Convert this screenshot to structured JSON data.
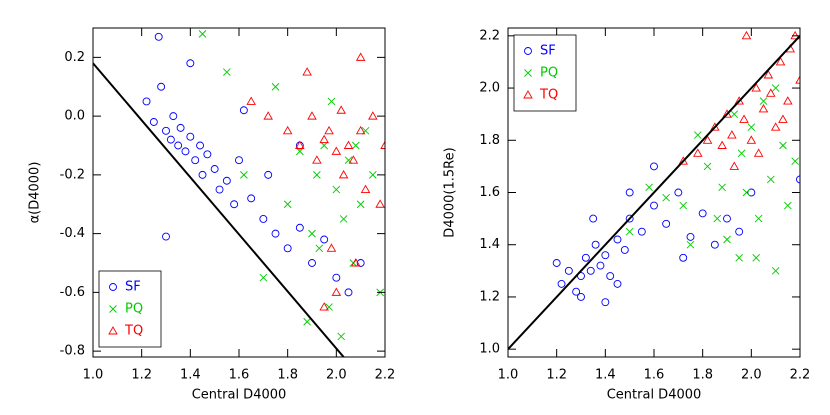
{
  "chart_data": [
    {
      "type": "scatter",
      "xlabel": "Central D4000",
      "ylabel": "α(D4000)",
      "xlim": [
        1.0,
        2.2
      ],
      "ylim": [
        -0.82,
        0.3
      ],
      "xticks": [
        {
          "value": 1.0,
          "label": "1.0"
        },
        1.2,
        1.4,
        1.6,
        1.8,
        {
          "value": 2.0,
          "label": "2.0"
        },
        2.2
      ],
      "yticks": [
        -0.8,
        -0.6,
        -0.4,
        -0.2,
        {
          "value": 0.0,
          "label": "0.0"
        },
        0.2
      ],
      "legend": "lower left",
      "line": {
        "color": "#000000",
        "x": [
          1.0,
          2.03
        ],
        "y": [
          0.18,
          -0.82
        ]
      },
      "series": [
        {
          "name": "SF",
          "color": "#0000ff",
          "marker": "circle",
          "x": [
            1.22,
            1.25,
            1.28,
            1.3,
            1.32,
            1.33,
            1.35,
            1.36,
            1.38,
            1.4,
            1.42,
            1.44,
            1.45,
            1.47,
            1.5,
            1.52,
            1.55,
            1.58,
            1.6,
            1.65,
            1.7,
            1.75,
            1.8,
            1.85,
            1.9,
            1.95,
            2.0,
            2.05,
            1.3,
            1.27,
            1.4,
            1.62,
            1.72,
            1.85,
            2.1
          ],
          "y": [
            0.05,
            -0.02,
            0.1,
            -0.05,
            -0.08,
            0.0,
            -0.1,
            -0.04,
            -0.12,
            -0.07,
            -0.15,
            -0.1,
            -0.2,
            -0.13,
            -0.18,
            -0.25,
            -0.22,
            -0.3,
            -0.15,
            -0.28,
            -0.35,
            -0.4,
            -0.45,
            -0.38,
            -0.5,
            -0.42,
            -0.55,
            -0.6,
            -0.41,
            0.27,
            0.18,
            0.02,
            -0.2,
            -0.1,
            -0.5
          ]
        },
        {
          "name": "PQ",
          "color": "#00cc00",
          "marker": "x",
          "x": [
            1.45,
            1.55,
            1.62,
            1.7,
            1.75,
            1.8,
            1.85,
            1.9,
            1.92,
            1.95,
            1.97,
            2.0,
            2.02,
            2.05,
            2.07,
            2.1,
            2.12,
            2.15,
            2.18,
            1.98,
            2.03,
            1.88,
            2.08,
            1.93
          ],
          "y": [
            0.28,
            0.15,
            -0.2,
            -0.55,
            0.1,
            -0.3,
            -0.12,
            -0.4,
            -0.2,
            -0.1,
            -0.65,
            -0.25,
            -0.75,
            -0.15,
            -0.5,
            -0.3,
            -0.05,
            -0.2,
            -0.6,
            0.05,
            -0.35,
            -0.7,
            -0.1,
            -0.45
          ]
        },
        {
          "name": "TQ",
          "color": "#ff0000",
          "marker": "triangle",
          "x": [
            1.65,
            1.72,
            1.8,
            1.85,
            1.9,
            1.92,
            1.95,
            1.97,
            2.0,
            2.02,
            2.03,
            2.05,
            2.07,
            2.1,
            2.12,
            2.15,
            2.18,
            2.2,
            1.88,
            1.98,
            2.08,
            2.0,
            1.95,
            2.1
          ],
          "y": [
            0.05,
            0.0,
            -0.05,
            -0.1,
            0.0,
            -0.15,
            -0.08,
            -0.05,
            -0.12,
            0.02,
            -0.2,
            -0.1,
            -0.15,
            -0.05,
            -0.25,
            0.0,
            -0.3,
            -0.1,
            0.15,
            -0.45,
            -0.5,
            -0.6,
            -0.65,
            0.2
          ]
        }
      ]
    },
    {
      "type": "scatter",
      "xlabel": "Central D4000",
      "ylabel": "D4000(1.5Re)",
      "xlim": [
        1.0,
        2.2
      ],
      "ylim": [
        0.97,
        2.23
      ],
      "xticks": [
        {
          "value": 1.0,
          "label": "1.0"
        },
        1.2,
        1.4,
        1.6,
        1.8,
        {
          "value": 2.0,
          "label": "2.0"
        },
        2.2
      ],
      "yticks": [
        {
          "value": 1.0,
          "label": "1.0"
        },
        1.2,
        1.4,
        1.6,
        1.8,
        {
          "value": 2.0,
          "label": "2.0"
        },
        2.2
      ],
      "legend": "upper left",
      "line": {
        "color": "#000000",
        "x": [
          1.0,
          2.2
        ],
        "y": [
          1.0,
          2.2
        ]
      },
      "series": [
        {
          "name": "SF",
          "color": "#0000ff",
          "marker": "circle",
          "x": [
            1.2,
            1.22,
            1.25,
            1.28,
            1.3,
            1.32,
            1.34,
            1.36,
            1.38,
            1.4,
            1.42,
            1.45,
            1.48,
            1.5,
            1.55,
            1.6,
            1.65,
            1.7,
            1.75,
            1.8,
            1.85,
            1.9,
            1.95,
            2.0,
            1.3,
            1.4,
            1.5,
            1.6,
            1.35,
            2.2,
            1.45,
            1.72
          ],
          "y": [
            1.33,
            1.25,
            1.3,
            1.22,
            1.28,
            1.35,
            1.3,
            1.4,
            1.32,
            1.36,
            1.28,
            1.42,
            1.38,
            1.5,
            1.45,
            1.55,
            1.48,
            1.6,
            1.43,
            1.52,
            1.4,
            1.5,
            1.45,
            1.6,
            1.2,
            1.18,
            1.6,
            1.7,
            1.5,
            1.65,
            1.25,
            1.35
          ]
        },
        {
          "name": "PQ",
          "color": "#00cc00",
          "marker": "x",
          "x": [
            1.5,
            1.58,
            1.65,
            1.72,
            1.78,
            1.82,
            1.86,
            1.9,
            1.93,
            1.96,
            1.98,
            2.0,
            2.03,
            2.05,
            2.08,
            2.1,
            2.13,
            2.15,
            2.18,
            1.95,
            2.02,
            1.88,
            1.75,
            2.1
          ],
          "y": [
            1.45,
            1.62,
            1.58,
            1.55,
            1.82,
            1.7,
            1.5,
            1.42,
            1.9,
            1.75,
            1.6,
            1.85,
            1.5,
            1.95,
            1.65,
            2.0,
            1.78,
            1.55,
            1.72,
            1.35,
            1.35,
            1.62,
            1.4,
            1.3
          ]
        },
        {
          "name": "TQ",
          "color": "#ff0000",
          "marker": "triangle",
          "x": [
            1.72,
            1.78,
            1.82,
            1.85,
            1.88,
            1.9,
            1.92,
            1.95,
            1.97,
            2.0,
            2.02,
            2.05,
            2.07,
            2.1,
            2.12,
            2.15,
            2.18,
            2.2,
            1.98,
            2.03,
            2.08,
            1.93,
            2.13,
            2.16
          ],
          "y": [
            1.72,
            1.75,
            1.8,
            1.85,
            1.78,
            1.9,
            1.82,
            1.95,
            1.88,
            1.8,
            2.0,
            1.92,
            2.05,
            1.85,
            2.1,
            1.95,
            2.2,
            2.03,
            2.2,
            1.75,
            1.98,
            1.7,
            1.88,
            2.15
          ]
        }
      ]
    }
  ]
}
